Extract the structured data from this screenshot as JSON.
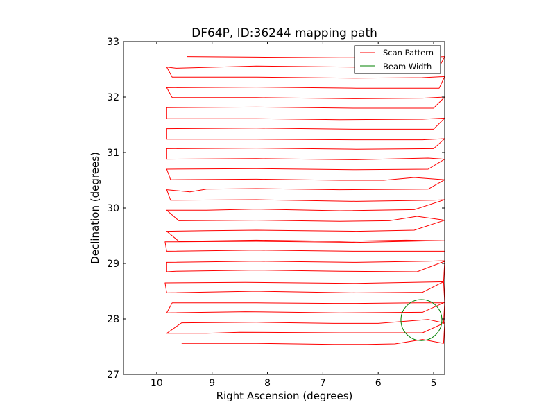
{
  "chart_data": {
    "type": "line",
    "title": "DF64P, ID:36244 mapping path",
    "xlabel": "Right Ascension (degrees)",
    "ylabel": "Declination (degrees)",
    "xlim": [
      10.6,
      4.8
    ],
    "ylim": [
      27,
      33
    ],
    "x_ticks": [
      10,
      9,
      8,
      7,
      6,
      5
    ],
    "y_ticks": [
      27,
      28,
      29,
      30,
      31,
      32,
      33
    ],
    "x_tick_labels": [
      "10",
      "9",
      "8",
      "7",
      "6",
      "5"
    ],
    "y_tick_labels": [
      "27",
      "28",
      "29",
      "30",
      "31",
      "32",
      "33"
    ],
    "grid": false,
    "legend_position": "top-right",
    "legend": [
      {
        "label": "Scan Pattern",
        "color": "#ff0000"
      },
      {
        "label": "Beam Width",
        "color": "#008000"
      }
    ],
    "series": [
      {
        "name": "Scan Pattern",
        "color": "#ff0000",
        "points": [
          [
            9.55,
            27.56
          ],
          [
            8.2,
            27.56
          ],
          [
            6.8,
            27.54
          ],
          [
            6.2,
            27.54
          ],
          [
            5.7,
            27.55
          ],
          [
            5.2,
            27.63
          ],
          [
            4.82,
            27.56
          ],
          [
            4.8,
            27.93
          ],
          [
            5.2,
            27.75
          ],
          [
            6.7,
            27.75
          ],
          [
            8.5,
            27.76
          ],
          [
            9.1,
            27.74
          ],
          [
            9.82,
            27.74
          ],
          [
            9.55,
            27.93
          ],
          [
            8.2,
            27.94
          ],
          [
            6.8,
            27.92
          ],
          [
            6.0,
            27.92
          ],
          [
            5.1,
            27.99
          ],
          [
            4.82,
            27.93
          ],
          [
            4.8,
            28.3
          ],
          [
            5.2,
            28.12
          ],
          [
            6.7,
            28.11
          ],
          [
            8.4,
            28.13
          ],
          [
            9.82,
            28.11
          ],
          [
            9.72,
            28.29
          ],
          [
            8.2,
            28.29
          ],
          [
            6.8,
            28.28
          ],
          [
            6.4,
            28.28
          ],
          [
            5.3,
            28.29
          ],
          [
            4.8,
            28.29
          ],
          [
            4.82,
            28.67
          ],
          [
            5.2,
            28.48
          ],
          [
            6.4,
            28.47
          ],
          [
            8.2,
            28.5
          ],
          [
            9.82,
            28.47
          ],
          [
            9.85,
            28.65
          ],
          [
            8.4,
            28.66
          ],
          [
            6.4,
            28.64
          ],
          [
            4.82,
            28.67
          ],
          [
            4.8,
            29.04
          ],
          [
            5.3,
            28.85
          ],
          [
            6.7,
            28.86
          ],
          [
            8.2,
            28.88
          ],
          [
            9.65,
            28.86
          ],
          [
            9.82,
            28.85
          ],
          [
            9.82,
            29.02
          ],
          [
            8.2,
            29.04
          ],
          [
            6.4,
            29.02
          ],
          [
            5.1,
            29.04
          ],
          [
            4.8,
            29.05
          ],
          [
            4.8,
            29.22
          ],
          [
            5.2,
            29.22
          ],
          [
            6.4,
            29.22
          ],
          [
            8.2,
            29.24
          ],
          [
            9.82,
            29.22
          ],
          [
            9.85,
            29.39
          ],
          [
            8.2,
            29.4
          ],
          [
            6.4,
            29.38
          ],
          [
            5.0,
            29.41
          ],
          [
            4.8,
            29.41
          ],
          [
            4.8,
            29.41
          ],
          [
            5.5,
            29.42
          ],
          [
            6.7,
            29.4
          ],
          [
            8.2,
            29.42
          ],
          [
            9.6,
            29.4
          ],
          [
            9.82,
            29.58
          ],
          [
            9.1,
            29.59
          ],
          [
            8.2,
            29.6
          ],
          [
            6.4,
            29.58
          ],
          [
            5.35,
            29.6
          ],
          [
            4.8,
            29.78
          ],
          [
            5.3,
            29.85
          ],
          [
            5.8,
            29.77
          ],
          [
            6.7,
            29.76
          ],
          [
            8.2,
            29.78
          ],
          [
            9.6,
            29.77
          ],
          [
            9.82,
            29.96
          ],
          [
            9.1,
            29.96
          ],
          [
            8.2,
            29.98
          ],
          [
            6.7,
            29.95
          ],
          [
            5.35,
            29.97
          ],
          [
            4.8,
            30.15
          ],
          [
            5.0,
            30.14
          ],
          [
            6.4,
            30.12
          ],
          [
            8.2,
            30.15
          ],
          [
            9.75,
            30.14
          ],
          [
            9.82,
            30.33
          ],
          [
            9.4,
            30.29
          ],
          [
            9.1,
            30.34
          ],
          [
            8.2,
            30.35
          ],
          [
            6.7,
            30.33
          ],
          [
            5.1,
            30.34
          ],
          [
            4.8,
            30.51
          ],
          [
            5.35,
            30.55
          ],
          [
            5.9,
            30.5
          ],
          [
            6.7,
            30.5
          ],
          [
            8.2,
            30.52
          ],
          [
            9.75,
            30.51
          ],
          [
            9.82,
            30.7
          ],
          [
            8.2,
            30.71
          ],
          [
            6.4,
            30.69
          ],
          [
            5.1,
            30.7
          ],
          [
            4.8,
            30.88
          ],
          [
            5.1,
            30.9
          ],
          [
            6.4,
            30.87
          ],
          [
            8.2,
            30.89
          ],
          [
            9.82,
            30.88
          ],
          [
            9.82,
            31.07
          ],
          [
            8.2,
            31.08
          ],
          [
            6.4,
            31.06
          ],
          [
            5.0,
            31.07
          ],
          [
            4.8,
            31.25
          ],
          [
            5.2,
            31.23
          ],
          [
            6.4,
            31.23
          ],
          [
            8.2,
            31.24
          ],
          [
            9.82,
            31.24
          ],
          [
            9.82,
            31.43
          ],
          [
            8.2,
            31.44
          ],
          [
            6.4,
            31.42
          ],
          [
            5.0,
            31.42
          ],
          [
            4.8,
            31.62
          ],
          [
            5.2,
            31.6
          ],
          [
            6.7,
            31.59
          ],
          [
            8.2,
            31.61
          ],
          [
            9.82,
            31.61
          ],
          [
            9.82,
            31.81
          ],
          [
            8.2,
            31.82
          ],
          [
            6.4,
            31.8
          ],
          [
            5.0,
            31.8
          ],
          [
            4.8,
            32.0
          ],
          [
            5.2,
            31.98
          ],
          [
            6.4,
            31.97
          ],
          [
            8.2,
            31.99
          ],
          [
            9.72,
            31.99
          ],
          [
            9.82,
            32.17
          ],
          [
            8.2,
            32.18
          ],
          [
            6.4,
            32.16
          ],
          [
            4.9,
            32.16
          ],
          [
            4.8,
            32.37
          ],
          [
            5.2,
            32.35
          ],
          [
            6.4,
            32.34
          ],
          [
            8.2,
            32.36
          ],
          [
            9.72,
            32.36
          ],
          [
            9.82,
            32.54
          ],
          [
            9.65,
            32.52
          ],
          [
            8.2,
            32.56
          ],
          [
            6.4,
            32.54
          ],
          [
            4.9,
            32.54
          ],
          [
            4.8,
            32.73
          ],
          [
            5.2,
            32.71
          ],
          [
            6.7,
            32.71
          ],
          [
            8.2,
            32.72
          ],
          [
            9.45,
            32.73
          ]
        ]
      },
      {
        "name": "Beam Width",
        "color": "#008000",
        "circle": {
          "center": [
            5.22,
            27.98
          ],
          "radius": 0.37
        }
      }
    ]
  }
}
